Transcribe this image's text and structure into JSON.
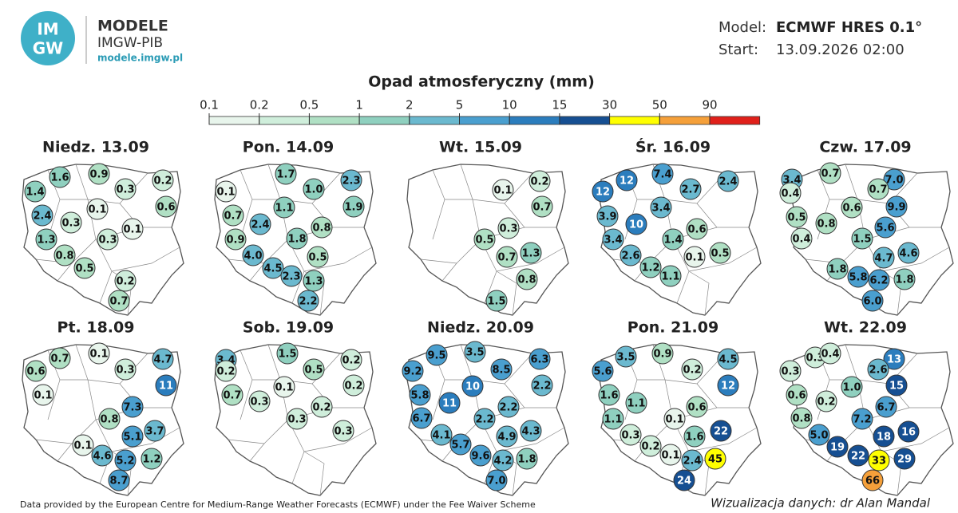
{
  "header": {
    "logo_top": "IM",
    "logo_bottom": "GW",
    "brand": "MODELE",
    "org": "IMGW-PIB",
    "url": "modele.imgw.pl",
    "model_label": "Model:",
    "model": "ECMWF HRES 0.1°",
    "start_label": "Start:",
    "start": "13.09.2026 02:00"
  },
  "legend": {
    "title": "Opad atmosferyczny (mm)",
    "ticks": [
      0.1,
      0.2,
      0.5,
      1,
      2,
      5,
      10,
      15,
      30,
      50,
      90
    ],
    "colors": [
      "#e8f5ec",
      "#cfeedb",
      "#b0e0c4",
      "#8fd0bf",
      "#6bb9cf",
      "#4a9fcf",
      "#2b7dbd",
      "#164f92",
      "#ffff00",
      "#f5a03a",
      "#e0201a"
    ]
  },
  "maps": [
    {
      "title": "Niedz. 13.09",
      "values": [
        "1.6",
        "0.9",
        "0.2",
        "1.4",
        "0.3",
        "0.6",
        "0.1",
        "2.4",
        "0.3",
        "0.1",
        "0.3",
        "1.3",
        "0.8",
        "0.5",
        "0.2",
        "0.7"
      ]
    },
    {
      "title": "Pon. 14.09",
      "values": [
        "1.7",
        "2.3",
        "0.1",
        "1.0",
        "0.7",
        "1.1",
        "2.4",
        "1.9",
        "0.8",
        "0.9",
        "1.8",
        "4.0",
        "0.5",
        "4.5",
        "2.3",
        "1.3",
        "2.2"
      ]
    },
    {
      "title": "Wt. 15.09",
      "values": [
        "0.2",
        "0.1",
        "0.7",
        "0.3",
        "0.5",
        "0.7",
        "1.3",
        "0.8",
        "1.5"
      ]
    },
    {
      "title": "Śr. 16.09",
      "values": [
        "12",
        "7.4",
        "2.4",
        "12",
        "2.7",
        "3.4",
        "3.9",
        "10",
        "0.6",
        "1.4",
        "3.4",
        "2.6",
        "0.1",
        "0.5",
        "1.2",
        "1.1"
      ]
    },
    {
      "title": "Czw. 17.09",
      "values": [
        "3.4",
        "0.7",
        "7.0",
        "0.4",
        "0.7",
        "9.9",
        "0.5",
        "0.8",
        "0.6",
        "5.6",
        "0.4",
        "1.5",
        "4.7",
        "4.6",
        "1.8",
        "5.8",
        "6.2",
        "1.8",
        "6.0"
      ]
    },
    {
      "title": "Pt. 18.09",
      "values": [
        "0.7",
        "0.1",
        "4.7",
        "0.6",
        "0.3",
        "11",
        "0.1",
        "7.3",
        "0.8",
        "3.7",
        "5.1",
        "0.1",
        "4.6",
        "5.2",
        "1.2",
        "8.7"
      ]
    },
    {
      "title": "Sob. 19.09",
      "values": [
        "3.4",
        "1.5",
        "0.2",
        "0.2",
        "0.5",
        "0.2",
        "0.7",
        "0.1",
        "0.3",
        "0.2",
        "0.3",
        "0.3"
      ]
    },
    {
      "title": "Niedz. 20.09",
      "values": [
        "9.5",
        "3.5",
        "6.3",
        "9.2",
        "8.5",
        "2.2",
        "5.8",
        "10",
        "11",
        "2.2",
        "6.7",
        "2.2",
        "4.3",
        "4.9",
        "4.1",
        "5.7",
        "9.6",
        "4.2",
        "1.8",
        "7.0"
      ]
    },
    {
      "title": "Pon. 21.09",
      "values": [
        "3.5",
        "0.9",
        "4.5",
        "5.6",
        "0.2",
        "12",
        "1.6",
        "1.1",
        "0.6",
        "1.1",
        "0.1",
        "22",
        "0.3",
        "1.6",
        "0.2",
        "0.1",
        "2.4",
        "45",
        "24"
      ]
    },
    {
      "title": "Wt. 22.09",
      "values": [
        "0.3",
        "0.4",
        "13",
        "0.3",
        "2.6",
        "15",
        "0.6",
        "1.0",
        "0.2",
        "6.7",
        "0.8",
        "7.2",
        "5.0",
        "16",
        "18",
        "19",
        "22",
        "33",
        "29",
        "66"
      ]
    }
  ],
  "footer": {
    "source": "Data provided by the European Centre for Medium-Range Weather Forecasts (ECMWF) under the Fee Waiver Scheme",
    "author": "Wizualizacja danych: dr Alan Mandal"
  }
}
